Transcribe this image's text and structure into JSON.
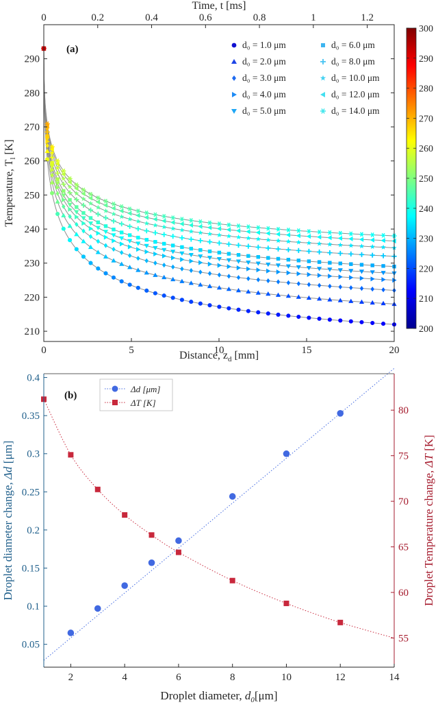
{
  "chart_data": [
    {
      "type": "scatter",
      "panel_label": "(a)",
      "xlabel": "Distance,  z",
      "xlabel_sub": "d",
      "xlabel_unit": " [mm]",
      "ylabel": "Temperature, T",
      "ylabel_sub": "l",
      "ylabel_unit": " [K]",
      "x2label": "Time,  t [ms]",
      "xlim": [
        0,
        20
      ],
      "ylim": [
        207,
        300
      ],
      "x2lim": [
        0,
        1.3
      ],
      "xticks": [
        0,
        5,
        10,
        15,
        20
      ],
      "yticks": [
        210,
        220,
        230,
        240,
        250,
        260,
        270,
        280,
        290
      ],
      "x2ticks": [
        0,
        0.2,
        0.4,
        0.6,
        0.8,
        1,
        1.2
      ],
      "colorbar": {
        "range": [
          200,
          300
        ],
        "ticks": [
          200,
          210,
          220,
          230,
          240,
          250,
          260,
          270,
          280,
          290,
          300
        ],
        "colormap": "jet"
      },
      "legend_position": "top-right",
      "T_initial": 293,
      "z_max": 20,
      "series": [
        {
          "name": "d₀ = 1.0 μm",
          "d0": "1.0",
          "marker": "circle",
          "T_final": 212
        },
        {
          "name": "d₀ = 2.0 μm",
          "d0": "2.0",
          "marker": "triangle-up",
          "T_final": 218
        },
        {
          "name": "d₀ = 3.0 μm",
          "d0": "3.0",
          "marker": "diamond",
          "T_final": 222
        },
        {
          "name": "d₀ = 4.0 μm",
          "d0": "4.0",
          "marker": "triangle-right",
          "T_final": 225
        },
        {
          "name": "d₀ = 5.0 μm",
          "d0": "5.0",
          "marker": "triangle-down",
          "T_final": 227
        },
        {
          "name": "d₀ = 6.0 μm",
          "d0": "6.0",
          "marker": "square",
          "T_final": 229
        },
        {
          "name": "d₀ = 8.0 μm",
          "d0": "8.0",
          "marker": "plus",
          "T_final": 232
        },
        {
          "name": "d₀ = 10.0 μm",
          "d0": "10.0",
          "marker": "star",
          "T_final": 234.5
        },
        {
          "name": "d₀ = 12.0 μm",
          "d0": "12.0",
          "marker": "triangle-left",
          "T_final": 236.5
        },
        {
          "name": "d₀ = 14.0 μm",
          "d0": "14.0",
          "marker": "asterisk",
          "T_final": 238
        }
      ]
    },
    {
      "type": "scatter",
      "panel_label": "(b)",
      "xlabel": "Droplet diameter,  ",
      "xlabel_var": "d",
      "xlabel_sub": "0",
      "xlabel_unit": "[μm]",
      "ylabel_left": "Droplet diameter change,  ",
      "ylabel_left_var": "Δd",
      "ylabel_left_unit": " [μm]",
      "ylabel_right": "Droplet Temperature change,  ",
      "ylabel_right_var": "ΔT",
      "ylabel_right_unit": " [K]",
      "xlim": [
        1,
        14
      ],
      "ylim_left": [
        0.02,
        0.405
      ],
      "ylim_right": [
        51.8,
        84
      ],
      "xticks": [
        2,
        4,
        6,
        8,
        10,
        12,
        14
      ],
      "yticks_left": [
        0.05,
        0.1,
        0.15,
        0.2,
        0.25,
        0.3,
        0.35,
        0.4
      ],
      "yticks_right": [
        55,
        60,
        65,
        70,
        75,
        80
      ],
      "legend_position": "top-left",
      "series": [
        {
          "name": "Δd [μm]",
          "axis": "left",
          "color": "#4169e1",
          "marker": "circle",
          "x": [
            2,
            3,
            4,
            5,
            6,
            8,
            10,
            12
          ],
          "y": [
            0.065,
            0.097,
            0.127,
            0.157,
            0.186,
            0.244,
            0.3,
            0.353
          ],
          "fit": [
            [
              1,
              0.029
            ],
            [
              14,
              0.412
            ]
          ]
        },
        {
          "name": "ΔT [K]",
          "axis": "right",
          "color": "#c8283c",
          "marker": "square",
          "x": [
            1,
            2,
            3,
            4,
            5,
            6,
            8,
            10,
            12
          ],
          "y": [
            81.2,
            75.1,
            71.3,
            68.5,
            66.3,
            64.4,
            61.3,
            58.8,
            56.7
          ],
          "fit_end": [
            14,
            55
          ]
        }
      ]
    }
  ],
  "colors": {
    "axis_text_a": "#262626",
    "axis_left_b": "#1f5f8b",
    "axis_right_b": "#a51a2c",
    "line_gray": "#8c8c8c"
  }
}
